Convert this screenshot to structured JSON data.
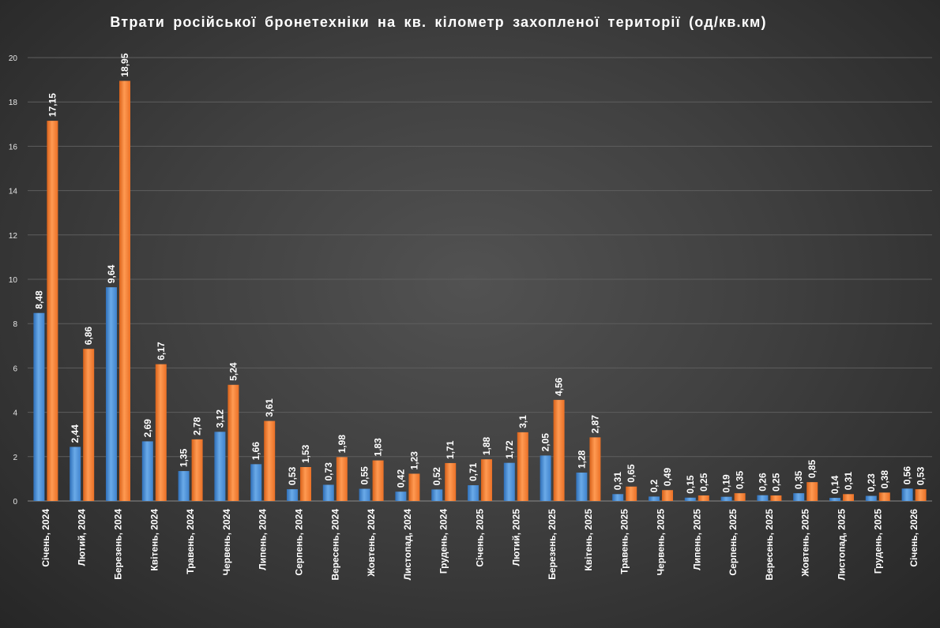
{
  "chart_data": {
    "type": "bar",
    "title": "Втрати російської бронетехніки на кв. кілометр захопленої території  (од/кв.км)",
    "xlabel": "",
    "ylabel": "",
    "ylim": [
      0,
      20
    ],
    "yticks": [
      "0",
      "2",
      "4",
      "6",
      "8",
      "10",
      "12",
      "14",
      "16",
      "18",
      "20"
    ],
    "grid": true,
    "legend": "none",
    "categories": [
      "Січень, 2024",
      "Лютий, 2024",
      "Березень, 2024",
      "Квітень, 2024",
      "Травень, 2024",
      "Червень, 2024",
      "Липень, 2024",
      "Серпень, 2024",
      "Вересень, 2024",
      "Жовтень, 2024",
      "Листопад, 2024",
      "Грудень, 2024",
      "Січень, 2025",
      "Лютий, 2025",
      "Березень, 2025",
      "Квітень, 2025",
      "Травень, 2025",
      "Червень, 2025",
      "Липень, 2025",
      "Серпень, 2025",
      "Вересень, 2025",
      "Жовтень, 2025",
      "Листопад, 2025",
      "Грудень, 2025",
      "Січень, 2026"
    ],
    "series": [
      {
        "color": "#4a8fd4",
        "values": [
          8.48,
          2.44,
          9.64,
          2.69,
          1.35,
          3.12,
          1.66,
          0.53,
          0.73,
          0.55,
          0.42,
          0.52,
          0.71,
          1.72,
          2.05,
          1.28,
          0.31,
          0.2,
          0.15,
          0.19,
          0.26,
          0.35,
          0.14,
          0.23,
          0.56
        ],
        "labels": [
          "8,48",
          "2,44",
          "9,64",
          "2,69",
          "1,35",
          "3,12",
          "1,66",
          "0,53",
          "0,73",
          "0,55",
          "0,42",
          "0,52",
          "0,71",
          "1,72",
          "2,05",
          "1,28",
          "0,31",
          "0,2",
          "0,15",
          "0,19",
          "0,26",
          "0,35",
          "0,14",
          "0,23",
          "0,56"
        ]
      },
      {
        "color": "#f07c2e",
        "values": [
          17.15,
          6.86,
          18.95,
          6.17,
          2.78,
          5.24,
          3.61,
          1.53,
          1.98,
          1.83,
          1.23,
          1.71,
          1.88,
          3.1,
          4.56,
          2.87,
          0.65,
          0.49,
          0.25,
          0.35,
          0.25,
          0.85,
          0.31,
          0.38,
          0.53
        ],
        "labels": [
          "17,15",
          "6,86",
          "18,95",
          "6,17",
          "2,78",
          "5,24",
          "3,61",
          "1,53",
          "1,98",
          "1,83",
          "1,23",
          "1,71",
          "1,88",
          "3,1",
          "4,56",
          "2,87",
          "0,65",
          "0,49",
          "0,25",
          "0,35",
          "0,25",
          "0,85",
          "0,31",
          "0,38",
          "0,53"
        ]
      }
    ]
  }
}
